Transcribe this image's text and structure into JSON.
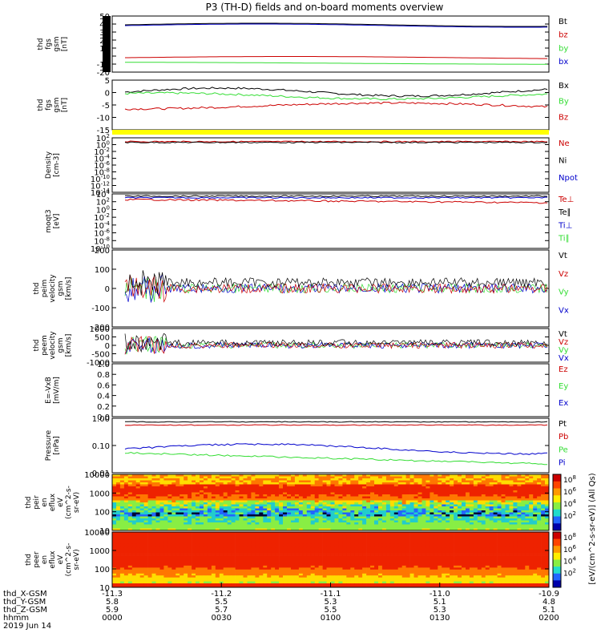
{
  "title": "P3 (TH-D) fields and on-board moments overview",
  "colors": {
    "black": "#000000",
    "red": "#cc0000",
    "green": "#33dd33",
    "blue": "#0000cc",
    "yellow": "#ffff00"
  },
  "chart_data": [
    {
      "id": "fgs",
      "type": "line",
      "ylabel_lines": [
        "thd",
        "fgs",
        "gsm",
        "[nT]"
      ],
      "ylim": [
        -20,
        50
      ],
      "yticks": [
        "50",
        "40",
        "30",
        "20",
        "10",
        "0",
        "-10",
        "-20"
      ],
      "legend": [
        {
          "name": "Bt",
          "color": "black"
        },
        {
          "name": "bz",
          "color": "red"
        },
        {
          "name": "by",
          "color": "green"
        },
        {
          "name": "bx",
          "color": "blue"
        }
      ]
    },
    {
      "id": "fgs2",
      "type": "line",
      "ylabel_lines": [
        "thd",
        "fgs",
        "gsm",
        "[nT]"
      ],
      "ylim": [
        -15,
        10
      ],
      "yticks": [
        "5",
        "0",
        "-5",
        "-10",
        "-15"
      ],
      "legend": [
        {
          "name": "Bx",
          "color": "black"
        },
        {
          "name": "By",
          "color": "green"
        },
        {
          "name": "Bz",
          "color": "red"
        }
      ]
    },
    {
      "id": "density",
      "type": "line",
      "ylabel_lines": [
        "Density",
        "[cm-3]"
      ],
      "log": true,
      "yticks": [
        "10^2",
        "10^0",
        "10^-2",
        "10^-4",
        "10^-6",
        "10^-8",
        "10^-10",
        "10^-12",
        "10^-14"
      ],
      "legend": [
        {
          "name": "Ne",
          "color": "red"
        },
        {
          "name": "Ni",
          "color": "black"
        },
        {
          "name": "Npot",
          "color": "blue"
        }
      ]
    },
    {
      "id": "temp",
      "type": "line",
      "ylabel_lines": [
        "moqt3",
        "[eV]"
      ],
      "log": true,
      "yticks": [
        "10^4",
        "10^2",
        "10^0",
        "10^-2",
        "10^-4",
        "10^-6",
        "10^-8",
        "10^-10"
      ],
      "legend": [
        {
          "name": "Te⊥",
          "color": "red"
        },
        {
          "name": "Te∥",
          "color": "black"
        },
        {
          "name": "Ti⊥",
          "color": "blue"
        },
        {
          "name": "Ti∥",
          "color": "green"
        }
      ]
    },
    {
      "id": "peimvel",
      "type": "line",
      "ylabel_lines": [
        "thd",
        "peim",
        "velocity",
        "gsm",
        "[km/s]"
      ],
      "ylim": [
        -200,
        200
      ],
      "yticks": [
        "200",
        "100",
        "0",
        "-100",
        "-200"
      ],
      "legend": [
        {
          "name": "Vt",
          "color": "black"
        },
        {
          "name": "Vz",
          "color": "red"
        },
        {
          "name": "Vy",
          "color": "green"
        },
        {
          "name": "Vx",
          "color": "blue"
        }
      ]
    },
    {
      "id": "peemvel",
      "type": "line",
      "ylabel_lines": [
        "thd",
        "peem",
        "velocity",
        "gsm",
        "[km/s]"
      ],
      "ylim": [
        -1000,
        1000
      ],
      "yticks": [
        "1000",
        "500",
        "0",
        "-500",
        "-1000"
      ],
      "legend": [
        {
          "name": "Vt",
          "color": "black"
        },
        {
          "name": "Vz",
          "color": "red"
        },
        {
          "name": "Vy",
          "color": "green"
        },
        {
          "name": "Vx",
          "color": "blue"
        }
      ]
    },
    {
      "id": "efield",
      "type": "line",
      "ylabel_lines": [
        "E=-VxB",
        "[mV/m]"
      ],
      "ylim": [
        0,
        1
      ],
      "yticks": [
        "1.0",
        "0.8",
        "0.6",
        "0.4",
        "0.2",
        "0.0"
      ],
      "legend": [
        {
          "name": "Ez",
          "color": "red"
        },
        {
          "name": "Ey",
          "color": "green"
        },
        {
          "name": "Ex",
          "color": "blue"
        }
      ]
    },
    {
      "id": "pressure",
      "type": "line",
      "ylabel_lines": [
        "Pressure",
        "[nPa]"
      ],
      "log": true,
      "yticks": [
        "1.00",
        "0.10",
        "0.01"
      ],
      "legend": [
        {
          "name": "Pt",
          "color": "black"
        },
        {
          "name": "Pb",
          "color": "red"
        },
        {
          "name": "Pe",
          "color": "green"
        },
        {
          "name": "Pi",
          "color": "blue"
        }
      ]
    },
    {
      "id": "peir",
      "type": "heatmap",
      "ylabel_lines": [
        "thd",
        "peir",
        "en",
        "eflux",
        "eV",
        "(cm^2-s-",
        "sr-eV)"
      ],
      "log": true,
      "yticks": [
        "10000",
        "1000",
        "100",
        "10"
      ]
    },
    {
      "id": "peer",
      "type": "heatmap",
      "ylabel_lines": [
        "thd",
        "peer",
        "en",
        "eflux",
        "eV",
        "(cm^2-s-",
        "sr-eV)"
      ],
      "log": true,
      "yticks": [
        "10000",
        "1000",
        "100",
        "10"
      ]
    }
  ],
  "colorbar": {
    "label": "[eV/(cm^2-s-sr-eV)] (All Qs)",
    "ticks_top": [
      "10^8",
      "10^6",
      "10^4",
      "10^2"
    ],
    "ticks_bottom": [
      "10^8",
      "10^6",
      "10^4",
      "10^2"
    ]
  },
  "x_axis": {
    "row_labels": [
      "thd_X-GSM",
      "thd_Y-GSM",
      "thd_Z-GSM",
      "hhmm",
      "2019 Jun 14"
    ],
    "ticks": [
      {
        "x": "-11.3",
        "y": "5.8",
        "z": "5.9",
        "t": "0000"
      },
      {
        "x": "-11.2",
        "y": "5.5",
        "z": "5.7",
        "t": "0030"
      },
      {
        "x": "-11.1",
        "y": "5.3",
        "z": "5.5",
        "t": "0100"
      },
      {
        "x": "-11.0",
        "y": "5.1",
        "z": "5.3",
        "t": "0130"
      },
      {
        "x": "-10.9",
        "y": "4.8",
        "z": "5.1",
        "t": "0200"
      }
    ]
  }
}
